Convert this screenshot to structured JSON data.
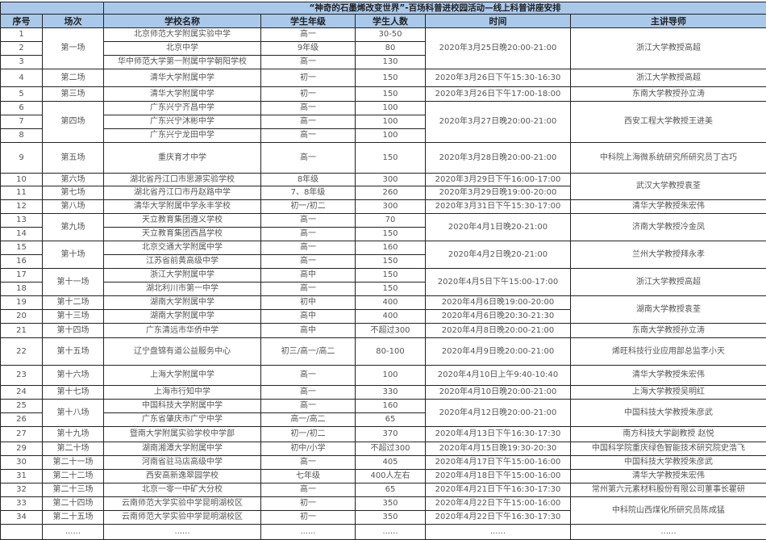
{
  "title": "“神奇的石墨烯改变世界”-百场科普进校园活动—线上科普讲座安排",
  "headers": [
    "序号",
    "场次",
    "学校名称",
    "学生年级",
    "学生人数",
    "时间",
    "主讲导师"
  ],
  "colors": {
    "header_bg": "#a9c9ea",
    "grid": "#222222"
  },
  "rows": [
    {
      "no": "1",
      "school": "北京师范大学附属实验中学",
      "grade": "高一",
      "count": "30-50"
    },
    {
      "no": "2",
      "school": "北京中学",
      "grade": "9年级",
      "count": "80"
    },
    {
      "no": "3",
      "school": "华中师范大学第一附属中学朝阳学校",
      "grade": "高一",
      "count": "130"
    },
    {
      "no": "4",
      "school": "清华大学附属中学",
      "grade": "初一",
      "count": "150"
    },
    {
      "no": "5",
      "school": "清华大学附属中学",
      "grade": "初一",
      "count": "150"
    },
    {
      "no": "6",
      "school": "广东兴宁齐昌中学",
      "grade": "高一",
      "count": "100"
    },
    {
      "no": "7",
      "school": "广东兴宁沐彬中学",
      "grade": "高一",
      "count": "100"
    },
    {
      "no": "8",
      "school": "广东兴宁龙田中学",
      "grade": "高一",
      "count": "100"
    },
    {
      "no": "9",
      "school": "重庆育才中学",
      "grade": "高一",
      "count": "150"
    },
    {
      "no": "10",
      "school": "湖北省丹江口市思源实验学校",
      "grade": "8年级",
      "count": "300"
    },
    {
      "no": "11",
      "school": "湖北省丹江口市丹赵路中学",
      "grade": "7、8年级",
      "count": "260"
    },
    {
      "no": "12",
      "school": "清华大学附属中学永丰学校",
      "grade": "初一/初二",
      "count": "300"
    },
    {
      "no": "13",
      "school": "天立教育集团遵义学校",
      "grade": "高一",
      "count": "70"
    },
    {
      "no": "14",
      "school": "天立教育集团西昌学校",
      "grade": "高一",
      "count": "150"
    },
    {
      "no": "15",
      "school": "北京交通大学附属中学",
      "grade": "高一",
      "count": "160"
    },
    {
      "no": "16",
      "school": "江苏省前黄高级中学",
      "grade": "高一",
      "count": "150"
    },
    {
      "no": "17",
      "school": "浙江大学附属中学",
      "grade": "高中",
      "count": "150"
    },
    {
      "no": "18",
      "school": "湖北利川市第一中学",
      "grade": "高一",
      "count": "150"
    },
    {
      "no": "19",
      "school": "湖南大学附属中学",
      "grade": "初中",
      "count": "400"
    },
    {
      "no": "20",
      "school": "湖南大学附属中学",
      "grade": "高中",
      "count": "400"
    },
    {
      "no": "21",
      "school": "广东清远市华侨中学",
      "grade": "高中",
      "count": "不超过300"
    },
    {
      "no": "22",
      "school": "辽宁盘锦有道公益服务中心",
      "grade": "初三/高一/高二",
      "count": "80-100"
    },
    {
      "no": "23",
      "school": "上海大学附属中学",
      "grade": "高一",
      "count": "100"
    },
    {
      "no": "24",
      "school": "上海市行知中学",
      "grade": "高一",
      "count": "330"
    },
    {
      "no": "25",
      "school": "中国科技大学附属中学",
      "grade": "高一",
      "count": "160"
    },
    {
      "no": "26",
      "school": "广东省肇庆市广宁中学",
      "grade": "高一/高二",
      "count": "65"
    },
    {
      "no": "27",
      "school": "暨南大学附属实验学校中学部",
      "grade": "初一/初二",
      "count": "370"
    },
    {
      "no": "29",
      "school": "湖南湘潭大学附属中学",
      "grade": "初中/小学",
      "count": "不超过300"
    },
    {
      "no": "30",
      "school": "河南省驻马店高级中学",
      "grade": "高一",
      "count": "405"
    },
    {
      "no": "31",
      "school": "西安高新逸翠园学校",
      "grade": "七年级",
      "count": "400人左右"
    },
    {
      "no": "32",
      "school": "北京一零一中矿大分校",
      "grade": "高一",
      "count": "65"
    },
    {
      "no": "33",
      "school": "云南师范大学实验中学昆明湖校区",
      "grade": "初一",
      "count": "350"
    },
    {
      "no": "34",
      "school": "云南师范大学实验中学昆明湖校区",
      "grade": "初一",
      "count": "350"
    },
    {
      "no": "",
      "school": "......",
      "grade": "......",
      "count": "......"
    }
  ],
  "sessions": [
    {
      "label": "第一场",
      "span": 3
    },
    {
      "label": "第二场",
      "span": 1
    },
    {
      "label": "第三场",
      "span": 1
    },
    {
      "label": "第四场",
      "span": 3
    },
    {
      "label": "第五场",
      "span": 1
    },
    {
      "label": "第六场",
      "span": 1
    },
    {
      "label": "第七场",
      "span": 1
    },
    {
      "label": "第八场",
      "span": 1
    },
    {
      "label": "第九场",
      "span": 2
    },
    {
      "label": "第十场",
      "span": 2
    },
    {
      "label": "第十一场",
      "span": 2
    },
    {
      "label": "第十二场",
      "span": 1
    },
    {
      "label": "第十三场",
      "span": 1
    },
    {
      "label": "第十四场",
      "span": 1
    },
    {
      "label": "第十五场",
      "span": 1
    },
    {
      "label": "第十六场",
      "span": 1
    },
    {
      "label": "第十七场",
      "span": 1
    },
    {
      "label": "第十八场",
      "span": 2
    },
    {
      "label": "第十九场",
      "span": 1
    },
    {
      "label": "第二十场",
      "span": 1
    },
    {
      "label": "第二十一场",
      "span": 1
    },
    {
      "label": "第二十二场",
      "span": 1
    },
    {
      "label": "第二十三场",
      "span": 1
    },
    {
      "label": "第二十四场",
      "span": 1
    },
    {
      "label": "第二十五场",
      "span": 1
    },
    {
      "label": "......",
      "span": 1
    }
  ],
  "times": [
    {
      "text": "2020年3月25日晚20:00-21:00",
      "span": 3
    },
    {
      "text": "2020年3月26日下午15:30-16:30",
      "span": 1
    },
    {
      "text": "2020年3月26日下午17:00-18:00",
      "span": 1
    },
    {
      "text": "2020年3月27日晚20:00-21:00",
      "span": 3
    },
    {
      "text": "2020年3月28日晚20:00-21:00",
      "span": 1
    },
    {
      "text": "2020年3月29日下午16:00-17:00",
      "span": 1
    },
    {
      "text": "2020年3月29日晚19:00-20:00",
      "span": 1
    },
    {
      "text": "2020年3月31日下午15:30-17:00",
      "span": 1
    },
    {
      "text": "2020年4月1日晚20-21:00",
      "span": 2
    },
    {
      "text": "2020年4月2日晚20-21:00",
      "span": 2
    },
    {
      "text": "2020年4月5日下午15:00-17:00",
      "span": 2
    },
    {
      "text": "2020年4月6日晚19:00-20:00",
      "span": 1
    },
    {
      "text": "2020年4月6日晚20:30-21:30",
      "span": 1
    },
    {
      "text": "2020年4月8日晚20:00-21:00",
      "span": 1
    },
    {
      "text": "2020年4月9日晚20:00-21:00",
      "span": 1
    },
    {
      "text": "2020年4月10日上午9:40-10:40",
      "span": 1
    },
    {
      "text": "2020年4月10日晚20:00-21:00",
      "span": 1
    },
    {
      "text": "2020年4月12日晚20:00-21:00",
      "span": 2
    },
    {
      "text": "2020年4月13日下午16:30-17:30",
      "span": 1
    },
    {
      "text": "2020年4月15日晚19:30-20:30",
      "span": 1
    },
    {
      "text": "2020年4月17日下午15:00-16:00",
      "span": 1
    },
    {
      "text": "2020年4月18日下午15:00-16:00",
      "span": 1
    },
    {
      "text": "2020年4月21日下午16:30-17:30",
      "span": 1
    },
    {
      "text": "2020年4月22日下午15:00-16:00",
      "span": 1
    },
    {
      "text": "2020年4月22日下午16:30-17:30",
      "span": 1
    },
    {
      "text": "......",
      "span": 1
    }
  ],
  "lecturers": [
    {
      "text": "浙江大学教授高超",
      "span": 3
    },
    {
      "text": "浙江大学教授高超",
      "span": 1
    },
    {
      "text": "东南大学教授孙立涛",
      "span": 1
    },
    {
      "text": "西安工程大学教授王进美",
      "span": 3
    },
    {
      "text": "中科院上海微系统研究所研究员丁古巧",
      "span": 1
    },
    {
      "text": "武汉大学教授袁荃",
      "span": 2
    },
    {
      "text": "清华大学教授朱宏伟",
      "span": 1
    },
    {
      "text": "济南大学教授冷金凤",
      "span": 2
    },
    {
      "text": "兰州大学教授拜永孝",
      "span": 2
    },
    {
      "text": "浙江大学教授高超",
      "span": 2
    },
    {
      "text": "湖南大学教授袁荃",
      "span": 2
    },
    {
      "text": "东南大学教授孙立涛",
      "span": 1
    },
    {
      "text": "烯旺科技行业应用部总监李小天",
      "span": 1
    },
    {
      "text": "清华大学教授朱宏伟",
      "span": 1
    },
    {
      "text": "上海大学教授吴明红",
      "span": 1
    },
    {
      "text": "中国科技大学教授朱彦武",
      "span": 2
    },
    {
      "text": "南方科技大学副教授 赵悦",
      "span": 1
    },
    {
      "text": "中国科学院重庆绿色智能技术研究院史浩飞",
      "span": 1
    },
    {
      "text": "中国科技大学教授朱彦武",
      "span": 1
    },
    {
      "text": "清华大学教授朱宏伟",
      "span": 1
    },
    {
      "text": "常州第六元素材料股份有限公司董事长瞿研",
      "span": 1
    },
    {
      "text": "中科院山西煤化所研究员陈成猛",
      "span": 2
    },
    {
      "text": "......",
      "span": 1
    }
  ]
}
